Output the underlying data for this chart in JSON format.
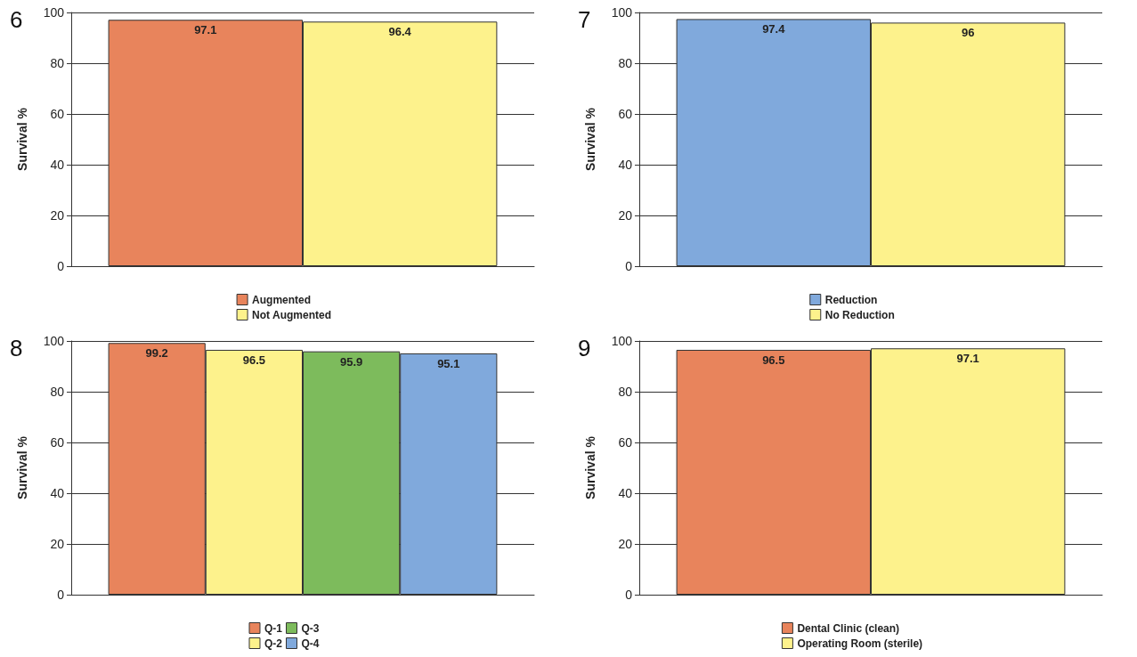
{
  "chart_data": [
    {
      "type": "bar",
      "title": "6",
      "ylabel": "Survival %",
      "categories": [
        null
      ],
      "ylim": [
        0,
        100
      ],
      "yticks": [
        0,
        20,
        40,
        60,
        80,
        100
      ],
      "grid": "y",
      "legend": "bottom",
      "data_labels": true,
      "series": [
        {
          "name": "Augmented",
          "color": "#e8845c",
          "values": [
            97.1
          ]
        },
        {
          "name": "Not Augmented",
          "color": "#fdf28c",
          "values": [
            96.4
          ]
        }
      ]
    },
    {
      "type": "bar",
      "title": "7",
      "ylabel": "Survival %",
      "categories": [
        null
      ],
      "ylim": [
        0,
        100
      ],
      "yticks": [
        0,
        20,
        40,
        60,
        80,
        100
      ],
      "grid": "y",
      "legend": "bottom",
      "data_labels": true,
      "series": [
        {
          "name": "Reduction",
          "color": "#80a9dc",
          "values": [
            97.4
          ]
        },
        {
          "name": "No Reduction",
          "color": "#fdf28c",
          "values": [
            96
          ]
        }
      ]
    },
    {
      "type": "bar",
      "title": "8",
      "ylabel": "Survival %",
      "categories": [
        null
      ],
      "ylim": [
        0,
        100
      ],
      "yticks": [
        0,
        20,
        40,
        60,
        80,
        100
      ],
      "grid": "y",
      "legend": "bottom",
      "data_labels": true,
      "series": [
        {
          "name": "Q-1",
          "color": "#e8845c",
          "values": [
            99.2
          ]
        },
        {
          "name": "Q-2",
          "color": "#fdf28c",
          "values": [
            96.5
          ]
        },
        {
          "name": "Q-3",
          "color": "#7dbb5c",
          "values": [
            95.9
          ]
        },
        {
          "name": "Q-4",
          "color": "#80a9dc",
          "values": [
            95.1
          ]
        }
      ]
    },
    {
      "type": "bar",
      "title": "9",
      "ylabel": "Survival %",
      "categories": [
        null
      ],
      "ylim": [
        0,
        100
      ],
      "yticks": [
        0,
        20,
        40,
        60,
        80,
        100
      ],
      "grid": "y",
      "legend": "bottom",
      "data_labels": true,
      "series": [
        {
          "name": "Dental Clinic (clean)",
          "color": "#e8845c",
          "values": [
            96.5
          ]
        },
        {
          "name": "Operating Room (sterile)",
          "color": "#fdf28c",
          "values": [
            97.1
          ]
        }
      ]
    }
  ]
}
